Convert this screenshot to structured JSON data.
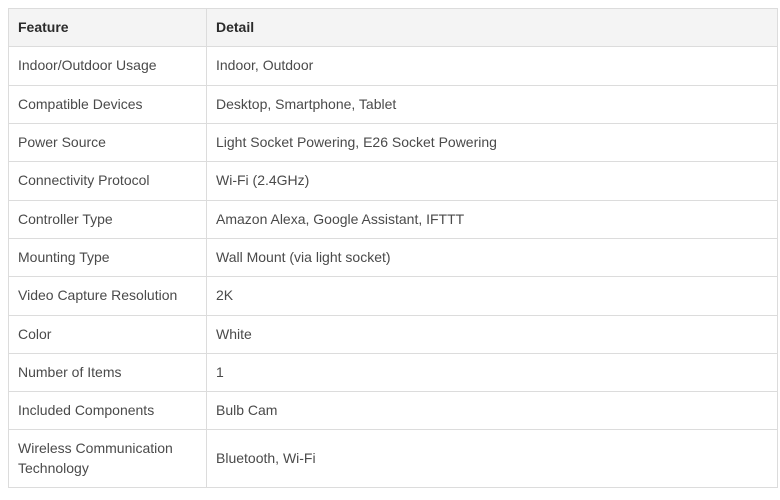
{
  "table": {
    "columns": {
      "feature": "Feature",
      "detail": "Detail"
    },
    "rows": [
      {
        "feature": "Indoor/Outdoor Usage",
        "detail": "Indoor, Outdoor"
      },
      {
        "feature": "Compatible Devices",
        "detail": "Desktop, Smartphone, Tablet"
      },
      {
        "feature": "Power Source",
        "detail": "Light Socket Powering, E26 Socket Powering"
      },
      {
        "feature": "Connectivity Protocol",
        "detail": "Wi-Fi (2.4GHz)"
      },
      {
        "feature": "Controller Type",
        "detail": "Amazon Alexa, Google Assistant, IFTTT"
      },
      {
        "feature": "Mounting Type",
        "detail": "Wall Mount (via light socket)"
      },
      {
        "feature": "Video Capture Resolution",
        "detail": "2K"
      },
      {
        "feature": "Color",
        "detail": "White"
      },
      {
        "feature": "Number of Items",
        "detail": "1"
      },
      {
        "feature": "Included Components",
        "detail": "Bulb Cam"
      },
      {
        "feature": "Wireless Communication Technology",
        "detail": "Bluetooth, Wi-Fi"
      }
    ],
    "colors": {
      "header_bg": "#f4f4f4",
      "border": "#dcdcdc",
      "header_text": "#2b2b2b",
      "body_text": "#4a4a4a"
    }
  }
}
